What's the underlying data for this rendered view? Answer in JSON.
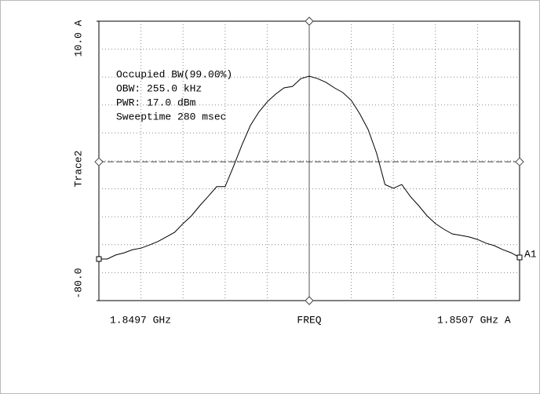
{
  "chart_data": {
    "type": "line",
    "ylabel": "Trace2",
    "yticks": [
      {
        "value": 10,
        "label": "10.0 A"
      },
      {
        "value": -80,
        "label": "-80.0"
      }
    ],
    "ylim": [
      -80,
      10
    ],
    "x_start_label": "1.8497 GHz",
    "xlabel": "FREQ",
    "x_end_label": "1.8507 GHz A",
    "grid": true,
    "grid_divisions": 10,
    "display_line": -35.3,
    "marker_label": "A1",
    "annotations": [
      "Occupied BW(99.00%)",
      "OBW: 255.0 kHz",
      "PWR: 17.0 dBm",
      "Sweeptime 280 msec"
    ],
    "series": [
      {
        "name": "Trace2",
        "color": "#000000",
        "values": [
          -66.6,
          -66.6,
          -65.3,
          -64.6,
          -63.6,
          -63.1,
          -62.1,
          -61.0,
          -59.5,
          -58.0,
          -55.2,
          -52.7,
          -49.4,
          -46.4,
          -43.3,
          -43.3,
          -36.8,
          -29.9,
          -23.6,
          -19.3,
          -16.0,
          -13.5,
          -11.5,
          -11.0,
          -8.5,
          -7.7,
          -8.5,
          -9.7,
          -11.5,
          -13.0,
          -15.5,
          -19.8,
          -24.9,
          -32.5,
          -42.6,
          -43.8,
          -42.6,
          -46.4,
          -49.4,
          -52.7,
          -55.2,
          -57.0,
          -58.5,
          -59.0,
          -59.5,
          -60.3,
          -61.5,
          -62.3,
          -63.6,
          -64.6,
          -66.1
        ]
      }
    ]
  }
}
